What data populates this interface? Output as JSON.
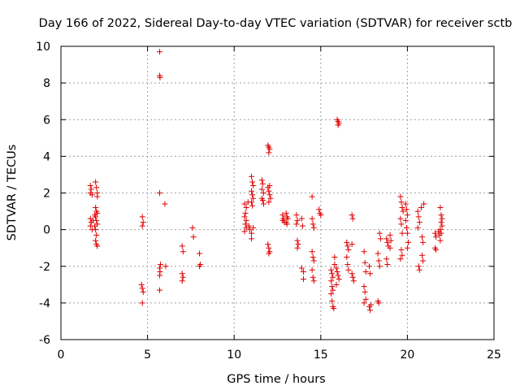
{
  "chart_data": {
    "type": "scatter",
    "title": "Day 166 of 2022, Sidereal Day-to-day VTEC variation (SDTVAR) for receiver sctb",
    "xlabel": "GPS time / hours",
    "ylabel": "SDTVAR / TECUs",
    "xlim": [
      0,
      25
    ],
    "ylim": [
      -6,
      10
    ],
    "xticks": [
      "0",
      "5",
      "10",
      "15",
      "20",
      "25"
    ],
    "yticks": [
      "-6",
      "-4",
      "-2",
      "0",
      "2",
      "4",
      "6",
      "8",
      "10"
    ],
    "grid": true,
    "marker": "plus",
    "color": "#e00000",
    "series": [
      {
        "name": "SDTVAR",
        "points": [
          [
            1.7,
            2.4
          ],
          [
            1.75,
            2.2
          ],
          [
            1.7,
            2.0
          ],
          [
            1.8,
            1.9
          ],
          [
            1.7,
            0.6
          ],
          [
            1.75,
            0.4
          ],
          [
            1.7,
            0.2
          ],
          [
            1.8,
            0.0
          ],
          [
            1.85,
            0.5
          ],
          [
            2.0,
            2.6
          ],
          [
            2.05,
            2.3
          ],
          [
            2.1,
            2.0
          ],
          [
            2.1,
            1.8
          ],
          [
            2.0,
            1.2
          ],
          [
            2.05,
            1.0
          ],
          [
            2.1,
            0.9
          ],
          [
            1.95,
            0.8
          ],
          [
            2.0,
            0.7
          ],
          [
            2.05,
            0.5
          ],
          [
            2.1,
            0.3
          ],
          [
            1.95,
            0.2
          ],
          [
            2.0,
            0.0
          ],
          [
            2.05,
            -0.3
          ],
          [
            2.0,
            -0.6
          ],
          [
            2.05,
            -0.8
          ],
          [
            2.1,
            -0.9
          ],
          [
            4.7,
            0.7
          ],
          [
            4.75,
            0.4
          ],
          [
            4.7,
            0.2
          ],
          [
            4.65,
            -3.0
          ],
          [
            4.7,
            -3.2
          ],
          [
            4.75,
            -3.4
          ],
          [
            4.7,
            -4.0
          ],
          [
            5.7,
            9.7
          ],
          [
            5.7,
            8.4
          ],
          [
            5.72,
            8.3
          ],
          [
            5.7,
            2.0
          ],
          [
            5.75,
            -1.9
          ],
          [
            5.7,
            -2.1
          ],
          [
            5.72,
            -2.3
          ],
          [
            5.7,
            -2.5
          ],
          [
            5.7,
            -3.3
          ],
          [
            6.0,
            1.4
          ],
          [
            6.05,
            -2.0
          ],
          [
            7.0,
            -0.9
          ],
          [
            7.05,
            -1.2
          ],
          [
            7.0,
            -2.4
          ],
          [
            7.05,
            -2.6
          ],
          [
            7.0,
            -2.8
          ],
          [
            7.6,
            0.1
          ],
          [
            7.65,
            -0.4
          ],
          [
            8.0,
            -1.3
          ],
          [
            8.05,
            -1.9
          ],
          [
            8.0,
            -2.0
          ],
          [
            10.6,
            1.4
          ],
          [
            10.7,
            1.2
          ],
          [
            10.65,
            0.9
          ],
          [
            10.6,
            0.7
          ],
          [
            10.7,
            0.5
          ],
          [
            10.65,
            0.3
          ],
          [
            10.7,
            0.1
          ],
          [
            10.6,
            -0.1
          ],
          [
            10.8,
            1.5
          ],
          [
            10.85,
            0.2
          ],
          [
            10.9,
            0.0
          ],
          [
            11.0,
            -0.2
          ],
          [
            11.0,
            -0.5
          ],
          [
            11.0,
            2.9
          ],
          [
            11.05,
            2.6
          ],
          [
            11.1,
            2.4
          ],
          [
            11.0,
            2.1
          ],
          [
            11.05,
            1.9
          ],
          [
            11.1,
            1.7
          ],
          [
            11.0,
            1.5
          ],
          [
            11.05,
            1.3
          ],
          [
            11.1,
            0.1
          ],
          [
            11.6,
            2.7
          ],
          [
            11.65,
            2.5
          ],
          [
            11.6,
            2.2
          ],
          [
            11.7,
            2.0
          ],
          [
            11.6,
            1.7
          ],
          [
            11.65,
            1.6
          ],
          [
            11.7,
            1.4
          ],
          [
            11.95,
            4.6
          ],
          [
            12.0,
            4.5
          ],
          [
            12.05,
            4.4
          ],
          [
            12.0,
            4.2
          ],
          [
            12.05,
            2.4
          ],
          [
            11.95,
            2.3
          ],
          [
            12.0,
            2.1
          ],
          [
            12.05,
            1.9
          ],
          [
            12.1,
            1.7
          ],
          [
            12.0,
            1.5
          ],
          [
            11.95,
            -0.8
          ],
          [
            12.0,
            -1.0
          ],
          [
            12.05,
            -1.2
          ],
          [
            12.0,
            -1.3
          ],
          [
            12.8,
            0.8
          ],
          [
            12.85,
            0.6
          ],
          [
            12.9,
            0.4
          ],
          [
            12.8,
            0.5
          ],
          [
            13.0,
            0.9
          ],
          [
            13.05,
            0.7
          ],
          [
            13.1,
            0.6
          ],
          [
            13.0,
            0.4
          ],
          [
            13.05,
            0.3
          ],
          [
            13.6,
            0.8
          ],
          [
            13.65,
            0.5
          ],
          [
            13.6,
            0.3
          ],
          [
            13.65,
            -0.6
          ],
          [
            13.7,
            -0.8
          ],
          [
            13.65,
            -1.0
          ],
          [
            13.9,
            0.6
          ],
          [
            13.95,
            0.2
          ],
          [
            13.9,
            -2.1
          ],
          [
            14.0,
            -2.3
          ],
          [
            14.0,
            -2.7
          ],
          [
            14.5,
            0.6
          ],
          [
            14.55,
            0.3
          ],
          [
            14.6,
            0.1
          ],
          [
            14.5,
            -1.2
          ],
          [
            14.55,
            -1.5
          ],
          [
            14.6,
            -1.7
          ],
          [
            14.5,
            -2.2
          ],
          [
            14.55,
            -2.6
          ],
          [
            14.6,
            -2.8
          ],
          [
            14.5,
            1.8
          ],
          [
            14.9,
            1.1
          ],
          [
            14.95,
            0.9
          ],
          [
            15.0,
            0.8
          ],
          [
            15.6,
            -2.2
          ],
          [
            15.65,
            -2.4
          ],
          [
            15.7,
            -2.6
          ],
          [
            15.6,
            -2.8
          ],
          [
            15.65,
            -3.1
          ],
          [
            15.7,
            -3.3
          ],
          [
            15.6,
            -3.5
          ],
          [
            15.65,
            -3.9
          ],
          [
            15.7,
            -4.2
          ],
          [
            15.75,
            -4.3
          ],
          [
            15.8,
            -1.5
          ],
          [
            15.8,
            -1.9
          ],
          [
            15.9,
            -2.1
          ],
          [
            15.95,
            -2.3
          ],
          [
            16.0,
            -2.5
          ],
          [
            16.05,
            -2.7
          ],
          [
            15.9,
            -3.0
          ],
          [
            15.95,
            6.0
          ],
          [
            16.0,
            5.9
          ],
          [
            16.05,
            5.8
          ],
          [
            16.0,
            5.7
          ],
          [
            16.5,
            -0.7
          ],
          [
            16.55,
            -0.9
          ],
          [
            16.6,
            -1.1
          ],
          [
            16.5,
            -1.5
          ],
          [
            16.55,
            -1.9
          ],
          [
            16.6,
            -2.2
          ],
          [
            16.8,
            0.8
          ],
          [
            16.85,
            0.6
          ],
          [
            16.8,
            -2.4
          ],
          [
            16.85,
            -2.6
          ],
          [
            16.9,
            -2.8
          ],
          [
            16.8,
            -0.8
          ],
          [
            17.5,
            -1.2
          ],
          [
            17.55,
            -1.8
          ],
          [
            17.6,
            -2.3
          ],
          [
            17.5,
            -3.1
          ],
          [
            17.55,
            -3.4
          ],
          [
            17.6,
            -3.8
          ],
          [
            17.5,
            -4.0
          ],
          [
            17.8,
            -2.0
          ],
          [
            17.85,
            -2.4
          ],
          [
            17.8,
            -4.2
          ],
          [
            17.85,
            -4.4
          ],
          [
            17.9,
            -4.1
          ],
          [
            18.3,
            -1.3
          ],
          [
            18.35,
            -1.7
          ],
          [
            18.4,
            -2.0
          ],
          [
            18.3,
            -3.9
          ],
          [
            18.35,
            -4.0
          ],
          [
            18.4,
            -0.2
          ],
          [
            18.45,
            -0.5
          ],
          [
            18.8,
            -0.5
          ],
          [
            18.85,
            -0.7
          ],
          [
            18.9,
            -0.9
          ],
          [
            18.8,
            -1.6
          ],
          [
            18.85,
            -1.9
          ],
          [
            19.0,
            -0.3
          ],
          [
            19.05,
            -0.6
          ],
          [
            19.0,
            -1.0
          ],
          [
            19.6,
            1.8
          ],
          [
            19.65,
            1.5
          ],
          [
            19.7,
            1.2
          ],
          [
            19.75,
            1.0
          ],
          [
            19.6,
            0.6
          ],
          [
            19.65,
            0.3
          ],
          [
            19.7,
            -0.2
          ],
          [
            19.65,
            -1.1
          ],
          [
            19.7,
            -1.4
          ],
          [
            19.6,
            -1.6
          ],
          [
            19.9,
            1.4
          ],
          [
            19.95,
            1.1
          ],
          [
            20.0,
            0.8
          ],
          [
            19.9,
            0.5
          ],
          [
            19.95,
            0.1
          ],
          [
            20.0,
            -0.2
          ],
          [
            20.05,
            -0.7
          ],
          [
            20.0,
            -1.0
          ],
          [
            20.6,
            1.0
          ],
          [
            20.65,
            0.7
          ],
          [
            20.7,
            0.4
          ],
          [
            20.6,
            0.1
          ],
          [
            20.65,
            -2.0
          ],
          [
            20.7,
            -2.2
          ],
          [
            20.8,
            1.2
          ],
          [
            20.85,
            -0.4
          ],
          [
            20.9,
            -0.7
          ],
          [
            20.85,
            -1.4
          ],
          [
            20.9,
            -1.7
          ],
          [
            20.95,
            1.4
          ],
          [
            21.6,
            -0.2
          ],
          [
            21.65,
            -0.4
          ],
          [
            21.6,
            -1.0
          ],
          [
            21.65,
            -1.1
          ],
          [
            21.8,
            -0.1
          ],
          [
            21.85,
            -0.3
          ],
          [
            21.9,
            -0.6
          ],
          [
            21.9,
            1.2
          ],
          [
            21.95,
            0.8
          ],
          [
            22.0,
            0.6
          ],
          [
            21.95,
            0.4
          ],
          [
            22.0,
            0.2
          ],
          [
            21.9,
            0.0
          ],
          [
            21.95,
            -0.2
          ]
        ]
      }
    ]
  }
}
